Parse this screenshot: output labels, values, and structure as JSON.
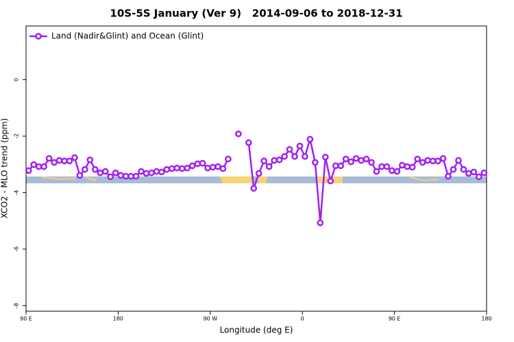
{
  "chart_data": {
    "type": "line",
    "title": "10S-5S January (Ver 9)   2014-09-06 to 2018-12-31",
    "x_label": "Longitude (deg E)",
    "y_label": "XCO2 - MLO trend (ppm)",
    "legend": "top-left",
    "xlim": [
      90,
      540
    ],
    "xticks": [
      {
        "value": 90,
        "label": "90 E"
      },
      180,
      {
        "value": 270,
        "label": "90 W"
      },
      {
        "value": 360,
        "label": "0"
      },
      {
        "value": 450,
        "label": "90 E"
      },
      {
        "value": 540,
        "label": "180"
      }
    ],
    "ylim": [
      -8.2,
      1.9
    ],
    "yticks": [
      -8,
      -6,
      -4,
      -2,
      0
    ],
    "x": [
      92.5,
      97.5,
      102.5,
      107.5,
      112.5,
      117.5,
      122.5,
      127.5,
      132.5,
      137.5,
      142.5,
      147.5,
      152.5,
      157.5,
      162.5,
      167.5,
      172.5,
      177.5,
      182.5,
      187.5,
      192.5,
      197.5,
      202.5,
      207.5,
      212.5,
      217.5,
      222.5,
      227.5,
      232.5,
      237.5,
      242.5,
      247.5,
      252.5,
      257.5,
      262.5,
      267.5,
      272.5,
      277.5,
      282.5,
      287.5,
      292.5,
      297.5,
      302.5,
      307.5,
      312.5,
      317.5,
      322.5,
      327.5,
      332.5,
      337.5,
      342.5,
      347.5,
      352.5,
      357.5,
      362.5,
      367.5,
      372.5,
      377.5,
      382.5,
      387.5,
      392.5,
      397.5,
      402.5,
      407.5,
      412.5,
      417.5,
      422.5,
      427.5,
      432.5,
      437.5,
      442.5,
      447.5,
      452.5,
      457.5,
      462.5,
      467.5,
      472.5,
      477.5,
      482.5,
      487.5,
      492.5,
      497.5,
      502.5,
      507.5,
      512.5,
      517.5,
      522.5,
      527.5,
      532.5,
      537.5
    ],
    "series": [
      {
        "name": "Land (Nadir&Glint) and Ocean (Glint)",
        "color": "#a020f0",
        "values": [
          -3.22,
          -3.01,
          -3.08,
          -3.08,
          -2.79,
          -2.93,
          -2.86,
          -2.88,
          -2.88,
          -2.76,
          -3.39,
          -3.18,
          -2.84,
          -3.18,
          -3.3,
          -3.25,
          -3.44,
          -3.3,
          -3.39,
          -3.42,
          -3.42,
          -3.42,
          -3.25,
          -3.32,
          -3.3,
          -3.25,
          -3.27,
          -3.18,
          -3.15,
          -3.13,
          -3.15,
          -3.13,
          -3.05,
          -2.98,
          -2.96,
          -3.13,
          -3.1,
          -3.08,
          -3.15,
          -2.81,
          null,
          -1.92,
          null,
          -2.23,
          -3.85,
          -3.32,
          -2.88,
          -3.08,
          -2.86,
          -2.84,
          -2.72,
          -2.47,
          -2.72,
          -2.35,
          -2.72,
          -2.11,
          -2.93,
          -5.07,
          -2.74,
          -3.59,
          -3.05,
          -3.05,
          -2.81,
          -2.91,
          -2.79,
          -2.86,
          -2.81,
          -2.93,
          -3.25,
          -3.08,
          -3.08,
          -3.22,
          -3.25,
          -3.03,
          -3.08,
          -3.1,
          -2.81,
          -2.93,
          -2.86,
          -2.88,
          -2.88,
          -2.79,
          -3.42,
          -3.18,
          -2.86,
          -3.18,
          -3.32,
          -3.27,
          -3.44,
          -3.3
        ]
      }
    ]
  }
}
